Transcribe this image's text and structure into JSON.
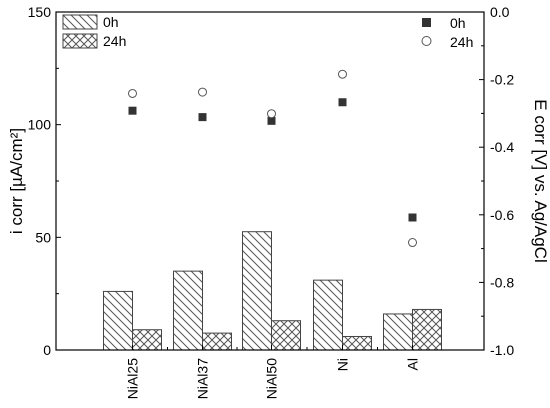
{
  "chart_data": {
    "type": "bar",
    "categories": [
      "NiAl25",
      "NiAl37",
      "NiAl50",
      "Ni",
      "Al"
    ],
    "bar_series": [
      {
        "name": "0h",
        "pattern": "diagonal-hatch",
        "values": [
          26,
          35,
          52.5,
          31,
          16
        ]
      },
      {
        "name": "24h",
        "pattern": "cross-hatch",
        "values": [
          9,
          7.5,
          13,
          6,
          18
        ]
      }
    ],
    "point_series": [
      {
        "name": "0h",
        "marker": "filled-square",
        "color": "#333333",
        "values": [
          -0.292,
          -0.311,
          -0.322,
          -0.267,
          -0.608
        ]
      },
      {
        "name": "24h",
        "marker": "open-circle",
        "color": "#555555",
        "values": [
          -0.241,
          -0.237,
          -0.301,
          -0.184,
          -0.682
        ]
      }
    ],
    "left_axis": {
      "label": "i corr [µA/cm²]",
      "min": 0,
      "max": 150,
      "ticks": [
        "0",
        "50",
        "100",
        "150"
      ]
    },
    "right_axis": {
      "label": "E corr [V] vs. Ag/AgCl",
      "min": -1.0,
      "max": 0.0,
      "ticks": [
        "-1.0",
        "-0.8",
        "-0.6",
        "-0.4",
        "-0.2",
        "0.0"
      ]
    },
    "legend_left": {
      "placement": "top-left",
      "entries": [
        "0h",
        "24h"
      ]
    },
    "legend_right": {
      "placement": "top-right",
      "entries": [
        "0h",
        "24h"
      ]
    },
    "grid": false
  }
}
